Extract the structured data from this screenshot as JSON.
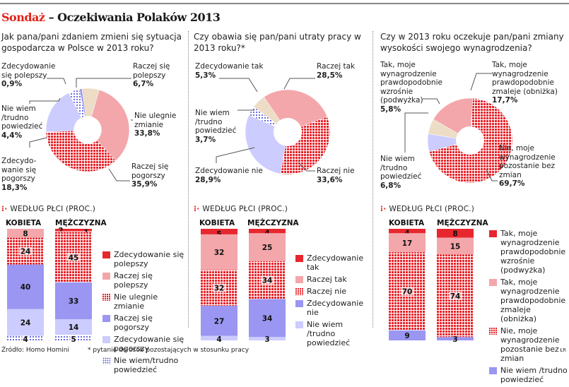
{
  "header": {
    "title_red": "Sondaż",
    "title_rest": "– Oczekiwania Polaków 2013"
  },
  "colors": {
    "strong_pos": "#e8262d",
    "pos": "#f3a7ab",
    "neutral_pattern": "#e8262d",
    "neg": "#9a96f2",
    "strong_neg": "#ccccff",
    "beige": "#eddcc6",
    "dont_know_pattern": "#6b6be6",
    "accent": "#e2231a"
  },
  "section_header": "WEDŁUG PŁCI (PROC.)",
  "footer": {
    "source": "Źródło: Homo Homini",
    "note": "* pytanie do osób pozostających w stosunku pracy",
    "credit": "ŁR"
  },
  "chart_data": [
    {
      "type": "pie",
      "title": "Jak pana/pani zdaniem zmieni się sytuacja gospodarcza w Polsce w 2013 roku?",
      "slices": [
        {
          "label": "Raczej się polepszy",
          "value": 6.7,
          "display": "6,7%",
          "fill": "beige"
        },
        {
          "label": "Nie ulegnie zmianie",
          "value": 33.8,
          "display": "33,8%",
          "fill": "pos"
        },
        {
          "label": "Raczej się pogorszy",
          "value": 35.9,
          "display": "35,9%",
          "fill": "neutral_pattern"
        },
        {
          "label": "Zdecydowanie się pogorszy",
          "value": 18.3,
          "display": "18,3%",
          "fill": "strong_neg"
        },
        {
          "label": "Nie wiem /trudno powiedzieć",
          "value": 4.4,
          "display": "4,4%",
          "fill": "dont_know_pattern"
        },
        {
          "label": "Zdecydowanie się polepszy",
          "value": 0.9,
          "display": "0,9%",
          "fill": "neg"
        }
      ]
    },
    {
      "type": "pie",
      "title": "Czy obawia się pan/pani utraty pracy w 2013 roku?*",
      "slices": [
        {
          "label": "Raczej tak",
          "value": 28.5,
          "display": "28,5%",
          "fill": "pos"
        },
        {
          "label": "Raczej nie",
          "value": 33.6,
          "display": "33,6%",
          "fill": "neutral_pattern"
        },
        {
          "label": "Zdecydowanie nie",
          "value": 28.9,
          "display": "28,9%",
          "fill": "strong_neg"
        },
        {
          "label": "Nie wiem /trudno powiedzieć",
          "value": 3.7,
          "display": "3,7%",
          "fill": "dont_know_pattern"
        },
        {
          "label": "Zdecydowanie tak",
          "value": 5.3,
          "display": "5,3%",
          "fill": "beige"
        }
      ]
    },
    {
      "type": "pie",
      "title": "Czy w 2013 roku oczekuje pan/pani zmiany wysokości swojego wynagrodzenia?",
      "slices": [
        {
          "label": "Tak, moje wynagrodzenie prawdopodobnie zmaleje (obniżka)",
          "value": 17.7,
          "display": "17,7%",
          "fill": "pos"
        },
        {
          "label": "Nie, moje wynagrodzenie pozostanie bez zmian",
          "value": 69.7,
          "display": "69,7%",
          "fill": "neutral_pattern"
        },
        {
          "label": "Nie wiem /trudno powiedzieć",
          "value": 6.8,
          "display": "6,8%",
          "fill": "strong_neg"
        },
        {
          "label": "Tak, moje wynagrodzenie prawdopodobnie wzrośnie (podwyżka)",
          "value": 5.8,
          "display": "5,8%",
          "fill": "beige"
        }
      ]
    },
    {
      "type": "bar",
      "stacked": true,
      "title": "WEDŁUG PŁCI (PROC.)",
      "categories": [
        "KOBIETA",
        "MĘŻCZYZNA"
      ],
      "series": [
        {
          "name": "Zdecydowanie się polepszy",
          "values": [
            0,
            2
          ],
          "fill": "strong_pos"
        },
        {
          "name": "Raczej się polepszy",
          "values": [
            8,
            1
          ],
          "fill": "pos"
        },
        {
          "name": "Nie ulegnie zmianie",
          "values": [
            24,
            45
          ],
          "fill": "neutral_pattern"
        },
        {
          "name": "Raczej się pogorszy",
          "values": [
            40,
            33
          ],
          "fill": "neg"
        },
        {
          "name": "Zdecydowanie się pogorszy",
          "values": [
            24,
            14
          ],
          "fill": "strong_neg"
        },
        {
          "name": "Nie wiem/trudno powiedzieć",
          "values": [
            4,
            5
          ],
          "fill": "dont_know_pattern"
        }
      ],
      "legend": [
        "Zdecydowanie się polepszy",
        "Raczej się polepszy",
        "Nie ulegnie zmianie",
        "Raczej się pogorszy",
        "Zdecydowanie się pogorszy",
        "Nie wiem/trudno powiedzieć"
      ]
    },
    {
      "type": "bar",
      "stacked": true,
      "title": "WEDŁUG PŁCI (PROC.)",
      "categories": [
        "KOBIETA",
        "MĘŻCZYZNA"
      ],
      "series": [
        {
          "name": "Zdecydowanie tak",
          "values": [
            5,
            4
          ],
          "fill": "strong_pos"
        },
        {
          "name": "Raczej tak",
          "values": [
            32,
            25
          ],
          "fill": "pos"
        },
        {
          "name": "Raczej nie",
          "values": [
            32,
            34
          ],
          "fill": "neutral_pattern"
        },
        {
          "name": "Zdecydowanie nie",
          "values": [
            27,
            34
          ],
          "fill": "neg"
        },
        {
          "name": "Nie wiem /trudno powiedzieć",
          "values": [
            4,
            3
          ],
          "fill": "strong_neg"
        }
      ],
      "legend": [
        "Zdecydowanie tak",
        "Raczej tak",
        "Raczej nie",
        "Zdecydowanie nie",
        "Nie wiem /trudno powiedzieć"
      ]
    },
    {
      "type": "bar",
      "stacked": true,
      "title": "WEDŁUG PŁCI (PROC.)",
      "categories": [
        "KOBIETA",
        "MĘŻCZYZNA"
      ],
      "series": [
        {
          "name": "Tak, moje wynagrodzenie prawdopodobnie wzrośnie (podwyżka)",
          "values": [
            4,
            8
          ],
          "fill": "strong_pos"
        },
        {
          "name": "Tak, moje wynagrodzenie prawdopodobnie zmaleje (obniżka)",
          "values": [
            17,
            15
          ],
          "fill": "pos"
        },
        {
          "name": "Nie, moje wynagrodzenie pozostanie bez zmian",
          "values": [
            70,
            74
          ],
          "fill": "neutral_pattern"
        },
        {
          "name": "Nie wiem /trudno powiedzieć",
          "values": [
            9,
            3
          ],
          "fill": "neg"
        }
      ],
      "legend": [
        "Tak, moje wynagrodzenie prawdopodobnie wzrośnie (podwyżka)",
        "Tak, moje wynagrodzenie prawdopodobnie zmaleje (obniżka)",
        "Nie, moje wynagrodzenie pozostanie bez zmian",
        "Nie wiem /trudno powiedzieć"
      ]
    }
  ],
  "pie_labels": [
    [
      {
        "text": "Zdecydowanie się polepszy",
        "pct": "0,9%"
      },
      {
        "text": "Raczej się polepszy",
        "pct": "6,7%"
      },
      {
        "text": "Nie ulegnie zmianie",
        "pct": "33,8%"
      },
      {
        "text": "Nie wiem /trudno powiedzieć",
        "pct": "4,4%"
      },
      {
        "text": "Zdecydo-wanie się pogorszy",
        "pct": "18,3%"
      },
      {
        "text": "Raczej się pogorszy",
        "pct": "35,9%"
      }
    ],
    [
      {
        "text": "Zdecydowanie tak",
        "pct": "5,3%"
      },
      {
        "text": "Raczej tak",
        "pct": "28,5%"
      },
      {
        "text": "Nie wiem /trudno powiedzieć",
        "pct": "3,7%"
      },
      {
        "text": "Zdecydowanie nie",
        "pct": "28,9%"
      },
      {
        "text": "Raczej nie",
        "pct": "33,6%"
      }
    ],
    [
      {
        "text": "Tak, moje wynagrodzenie prawdopodobnie wzrośnie (podwyżka)",
        "pct": "5,8%"
      },
      {
        "text": "Tak, moje wynagrodzenie prawdopodobnie zmaleje (obniżka)",
        "pct": "17,7%"
      },
      {
        "text": "Nie wiem /trudno powiedzieć",
        "pct": "6,8%"
      },
      {
        "text": "Nie, moje wynagrodzenie pozostanie bez zmian",
        "pct": "69,7%"
      }
    ]
  ]
}
